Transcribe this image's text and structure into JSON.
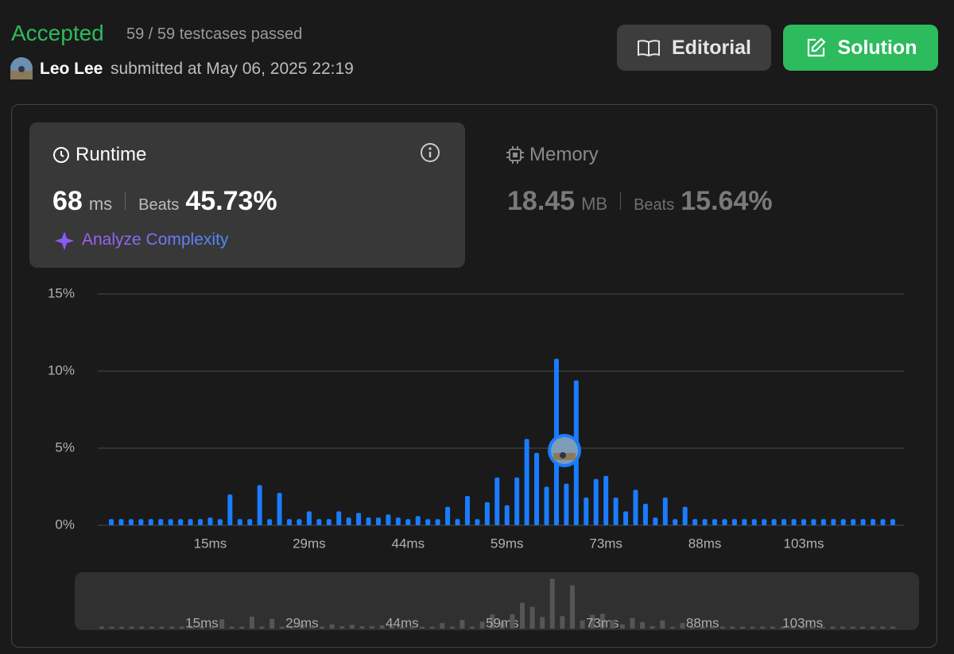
{
  "header": {
    "status": "Accepted",
    "testcases": "59 / 59 testcases passed",
    "user": "Leo Lee",
    "submitted": "submitted at May 06, 2025 22:19"
  },
  "buttons": {
    "editorial": "Editorial",
    "solution": "Solution"
  },
  "runtime": {
    "label": "Runtime",
    "value": "68",
    "unit": "ms",
    "beats_label": "Beats",
    "beats": "45.73%",
    "analyze": "Analyze Complexity"
  },
  "memory": {
    "label": "Memory",
    "value": "18.45",
    "unit": "MB",
    "beats_label": "Beats",
    "beats": "15.64%"
  },
  "chart_data": {
    "type": "bar",
    "color": "#1a7cff",
    "grid": true,
    "categories": [
      null,
      null,
      null,
      null,
      null,
      null,
      null,
      null,
      null,
      null,
      "15ms",
      null,
      null,
      null,
      null,
      null,
      null,
      null,
      null,
      null,
      "29ms",
      null,
      null,
      null,
      null,
      null,
      null,
      null,
      null,
      null,
      "44ms",
      null,
      null,
      null,
      null,
      null,
      null,
      null,
      null,
      null,
      "59ms",
      null,
      null,
      null,
      null,
      null,
      null,
      null,
      null,
      null,
      "73ms",
      null,
      null,
      null,
      null,
      null,
      null,
      null,
      null,
      null,
      "88ms",
      null,
      null,
      null,
      null,
      null,
      null,
      null,
      null,
      null,
      "103ms",
      null,
      null,
      null,
      null,
      null,
      null,
      null,
      null,
      null
    ],
    "values": [
      0.4,
      0.4,
      0.4,
      0.4,
      0.4,
      0.4,
      0.4,
      0.4,
      0.4,
      0.4,
      0.5,
      0.4,
      2.0,
      0.4,
      0.4,
      2.6,
      0.4,
      2.1,
      0.4,
      0.4,
      0.9,
      0.4,
      0.4,
      0.9,
      0.5,
      0.8,
      0.5,
      0.5,
      0.7,
      0.5,
      0.4,
      0.6,
      0.4,
      0.4,
      1.2,
      0.4,
      1.9,
      0.4,
      1.5,
      3.1,
      1.3,
      3.1,
      5.6,
      4.7,
      2.5,
      10.8,
      2.7,
      9.4,
      1.8,
      3.0,
      3.2,
      1.8,
      0.9,
      2.3,
      1.4,
      0.5,
      1.8,
      0.4,
      1.2,
      0.4,
      0.4,
      0.4,
      0.4,
      0.4,
      0.4,
      0.4,
      0.4,
      0.4,
      0.4,
      0.4,
      0.4,
      0.4,
      0.4,
      0.4,
      0.4,
      0.4,
      0.4,
      0.4,
      0.4,
      0.4
    ],
    "ylim": [
      0,
      15
    ],
    "yticks": [
      {
        "value": 0,
        "label": "0%"
      },
      {
        "value": 5,
        "label": "5%"
      },
      {
        "value": 10,
        "label": "10%"
      },
      {
        "value": 15,
        "label": "15%"
      }
    ]
  }
}
